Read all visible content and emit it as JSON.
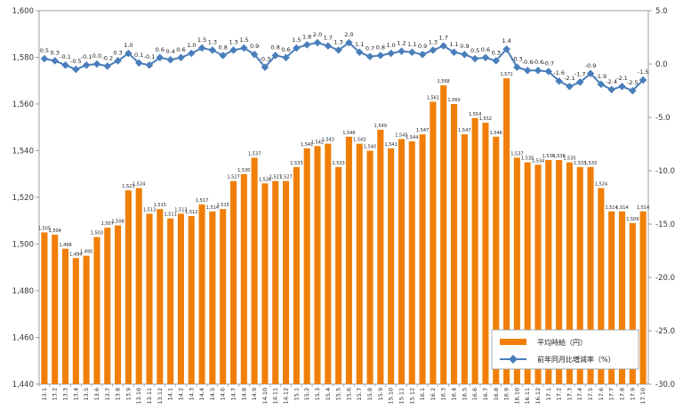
{
  "chart_data": {
    "type": "bar",
    "categories": [
      "13.1",
      "13.2",
      "13.3",
      "13.4",
      "13.5",
      "13.6",
      "13.7",
      "13.8",
      "13.9",
      "13.10",
      "13.11",
      "13.12",
      "14.1",
      "14.2",
      "14.3",
      "14.4",
      "14.5",
      "14.6",
      "14.7",
      "14.8",
      "14.9",
      "14.10",
      "14.11",
      "14.12",
      "15.1",
      "15.2",
      "15.3",
      "15.4",
      "15.5",
      "15.6",
      "15.7",
      "15.8",
      "15.9",
      "15.10",
      "15.11",
      "15.12",
      "16.1",
      "16.2",
      "16.3",
      "16.4",
      "16.5",
      "16.6",
      "16.7",
      "16.8",
      "16.9",
      "16.10",
      "16.11",
      "16.12",
      "17.1",
      "17.2",
      "17.3",
      "17.4",
      "17.5",
      "17.6",
      "17.7",
      "17.8",
      "17.9",
      "17.10"
    ],
    "series": [
      {
        "name": "平均時給（円）",
        "type": "bar",
        "axis": "left",
        "values": [
          1505,
          1504,
          1498,
          1494,
          1495,
          1503,
          1507,
          1508,
          1523,
          1524,
          1513,
          1515,
          1511,
          1513,
          1512,
          1517,
          1514,
          1515,
          1527,
          1530,
          1537,
          1526,
          1527,
          1527,
          1533,
          1541,
          1542,
          1543,
          1533,
          1546,
          1543,
          1540,
          1549,
          1541,
          1545,
          1544,
          1547,
          1561,
          1568,
          1560,
          1547,
          1554,
          1552,
          1546,
          1571,
          1537,
          1535,
          1534,
          1536,
          1536,
          1535,
          1533,
          1533,
          1524,
          1514,
          1514,
          1509,
          1514
        ]
      },
      {
        "name": "前年同月比増減率（%）",
        "type": "line",
        "axis": "right",
        "values": [
          0.5,
          0.3,
          -0.1,
          -0.5,
          -0.1,
          0.0,
          -0.2,
          0.3,
          1.0,
          0.1,
          -0.1,
          0.6,
          0.4,
          0.6,
          1.0,
          1.5,
          1.3,
          0.8,
          1.3,
          1.5,
          0.9,
          -0.3,
          0.8,
          0.6,
          1.5,
          1.8,
          2.0,
          1.7,
          1.3,
          2.0,
          1.1,
          0.7,
          0.8,
          1.0,
          1.2,
          1.1,
          0.9,
          1.3,
          1.7,
          1.1,
          0.9,
          0.5,
          0.6,
          0.3,
          1.4,
          -0.3,
          -0.6,
          -0.6,
          -0.7,
          -1.6,
          -2.1,
          -1.7,
          -0.9,
          -1.9,
          -2.4,
          -2.1,
          -2.5,
          -1.5
        ]
      }
    ],
    "ylim_left": [
      1440,
      1600
    ],
    "yticks_left": [
      1440,
      1460,
      1480,
      1500,
      1520,
      1540,
      1560,
      1580,
      1600
    ],
    "yticks_left_labels": [
      "1,440",
      "1,460",
      "1,480",
      "1,500",
      "1,520",
      "1,540",
      "1,560",
      "1,580",
      "1,600"
    ],
    "ylim_right": [
      -30,
      5
    ],
    "yticks_right": [
      5,
      0,
      -5,
      -10,
      -15,
      -20,
      -25,
      -30
    ],
    "yticks_right_labels": [
      "5.0",
      "0.0",
      "-5.0",
      "-10.0",
      "-15.0",
      "-20.0",
      "-25.0",
      "-30.0"
    ],
    "grid": false,
    "legend_position": "bottom-right",
    "colors": {
      "bar": "#f07f09",
      "line": "#4a7ebb"
    }
  }
}
